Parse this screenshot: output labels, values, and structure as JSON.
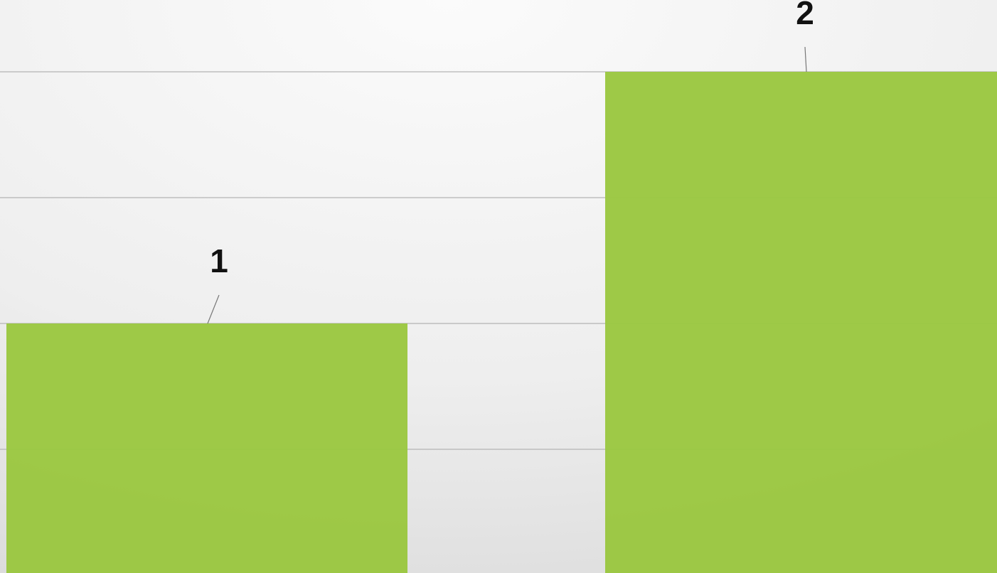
{
  "chart_data": {
    "type": "bar",
    "categories": [
      null,
      null
    ],
    "values": [
      1,
      2
    ],
    "color": "#9bc741",
    "ylim": [
      0,
      2.28
    ],
    "yticks": [
      0.5,
      1,
      1.5,
      2
    ],
    "grid": true
  }
}
